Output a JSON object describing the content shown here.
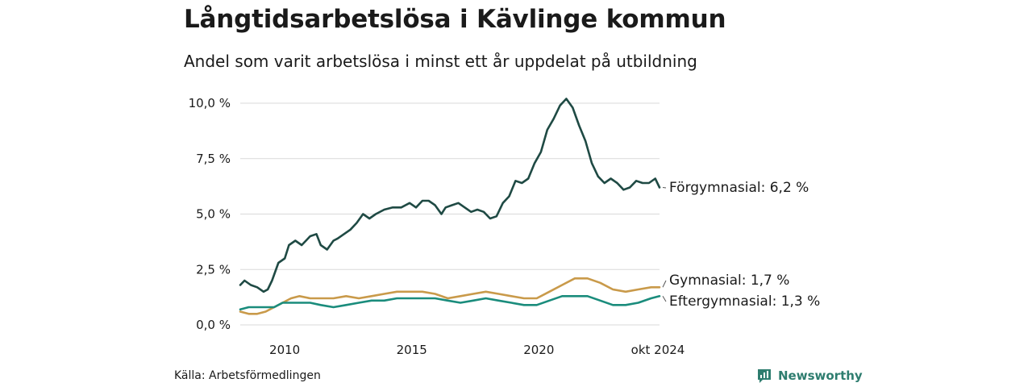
{
  "title": "Långtidsarbetslösa i Kävlinge kommun",
  "subtitle": "Andel som varit arbetslösa i minst ett år uppdelat på utbildning",
  "source": "Källa: Arbetsförmedlingen",
  "brand": "Newsworthy",
  "colors": {
    "forgymnasial": "#1f4a44",
    "gymnasial": "#c99a4a",
    "eftergymnasial": "#1a8c7c",
    "grid": "#d9d9d9",
    "brand": "#2e7d6f"
  },
  "chart_data": {
    "type": "line",
    "title": "Långtidsarbetslösa i Kävlinge kommun",
    "subtitle": "Andel som varit arbetslösa i minst ett år uppdelat på utbildning",
    "x_range": [
      "2008-04",
      "2024-10"
    ],
    "y_range": [
      0,
      10.5
    ],
    "y_ticks": [
      0,
      2.5,
      5,
      7.5,
      10
    ],
    "y_tick_labels": [
      "0,0 %",
      "2,5 %",
      "5,0 %",
      "7,5 %",
      "10,0 %"
    ],
    "x_ticks": [
      "2010-01",
      "2015-01",
      "2020-01",
      "2024-10"
    ],
    "x_tick_labels": [
      "2010",
      "2015",
      "2020",
      "okt 2024"
    ],
    "grid": "horizontal",
    "series": [
      {
        "name": "Förgymnasial",
        "end_label": "Förgymnasial: 6,2 %",
        "color": "#1f4a44",
        "points": [
          [
            "2008-04",
            1.8
          ],
          [
            "2008-06",
            2.0
          ],
          [
            "2008-09",
            1.8
          ],
          [
            "2008-12",
            1.7
          ],
          [
            "2009-03",
            1.5
          ],
          [
            "2009-05",
            1.6
          ],
          [
            "2009-07",
            2.0
          ],
          [
            "2009-10",
            2.8
          ],
          [
            "2010-01",
            3.0
          ],
          [
            "2010-03",
            3.6
          ],
          [
            "2010-06",
            3.8
          ],
          [
            "2010-09",
            3.6
          ],
          [
            "2011-01",
            4.0
          ],
          [
            "2011-04",
            4.1
          ],
          [
            "2011-06",
            3.6
          ],
          [
            "2011-09",
            3.4
          ],
          [
            "2011-12",
            3.8
          ],
          [
            "2012-02",
            3.9
          ],
          [
            "2012-05",
            4.1
          ],
          [
            "2012-08",
            4.3
          ],
          [
            "2012-11",
            4.6
          ],
          [
            "2013-02",
            5.0
          ],
          [
            "2013-05",
            4.8
          ],
          [
            "2013-08",
            5.0
          ],
          [
            "2013-12",
            5.2
          ],
          [
            "2014-04",
            5.3
          ],
          [
            "2014-08",
            5.3
          ],
          [
            "2014-12",
            5.5
          ],
          [
            "2015-03",
            5.3
          ],
          [
            "2015-06",
            5.6
          ],
          [
            "2015-09",
            5.6
          ],
          [
            "2015-12",
            5.4
          ],
          [
            "2016-03",
            5.0
          ],
          [
            "2016-05",
            5.3
          ],
          [
            "2016-08",
            5.4
          ],
          [
            "2016-11",
            5.5
          ],
          [
            "2017-02",
            5.3
          ],
          [
            "2017-05",
            5.1
          ],
          [
            "2017-08",
            5.2
          ],
          [
            "2017-11",
            5.1
          ],
          [
            "2018-02",
            4.8
          ],
          [
            "2018-05",
            4.9
          ],
          [
            "2018-08",
            5.5
          ],
          [
            "2018-11",
            5.8
          ],
          [
            "2019-02",
            6.5
          ],
          [
            "2019-05",
            6.4
          ],
          [
            "2019-08",
            6.6
          ],
          [
            "2019-11",
            7.3
          ],
          [
            "2020-02",
            7.8
          ],
          [
            "2020-05",
            8.8
          ],
          [
            "2020-08",
            9.3
          ],
          [
            "2020-11",
            9.9
          ],
          [
            "2021-02",
            10.2
          ],
          [
            "2021-05",
            9.8
          ],
          [
            "2021-08",
            9.0
          ],
          [
            "2021-11",
            8.3
          ],
          [
            "2022-02",
            7.3
          ],
          [
            "2022-05",
            6.7
          ],
          [
            "2022-08",
            6.4
          ],
          [
            "2022-11",
            6.6
          ],
          [
            "2023-02",
            6.4
          ],
          [
            "2023-05",
            6.1
          ],
          [
            "2023-08",
            6.2
          ],
          [
            "2023-11",
            6.5
          ],
          [
            "2024-02",
            6.4
          ],
          [
            "2024-05",
            6.4
          ],
          [
            "2024-08",
            6.6
          ],
          [
            "2024-10",
            6.2
          ]
        ]
      },
      {
        "name": "Gymnasial",
        "end_label": "Gymnasial: 1,7 %",
        "color": "#c99a4a",
        "points": [
          [
            "2008-04",
            0.6
          ],
          [
            "2008-08",
            0.5
          ],
          [
            "2008-12",
            0.5
          ],
          [
            "2009-04",
            0.6
          ],
          [
            "2009-08",
            0.8
          ],
          [
            "2009-12",
            1.0
          ],
          [
            "2010-04",
            1.2
          ],
          [
            "2010-08",
            1.3
          ],
          [
            "2011-01",
            1.2
          ],
          [
            "2011-06",
            1.2
          ],
          [
            "2011-12",
            1.2
          ],
          [
            "2012-06",
            1.3
          ],
          [
            "2012-12",
            1.2
          ],
          [
            "2013-06",
            1.3
          ],
          [
            "2013-12",
            1.4
          ],
          [
            "2014-06",
            1.5
          ],
          [
            "2014-12",
            1.5
          ],
          [
            "2015-06",
            1.5
          ],
          [
            "2015-12",
            1.4
          ],
          [
            "2016-06",
            1.2
          ],
          [
            "2016-12",
            1.3
          ],
          [
            "2017-06",
            1.4
          ],
          [
            "2017-12",
            1.5
          ],
          [
            "2018-06",
            1.4
          ],
          [
            "2018-12",
            1.3
          ],
          [
            "2019-06",
            1.2
          ],
          [
            "2019-12",
            1.2
          ],
          [
            "2020-06",
            1.5
          ],
          [
            "2020-12",
            1.8
          ],
          [
            "2021-06",
            2.1
          ],
          [
            "2021-12",
            2.1
          ],
          [
            "2022-06",
            1.9
          ],
          [
            "2022-12",
            1.6
          ],
          [
            "2023-06",
            1.5
          ],
          [
            "2023-12",
            1.6
          ],
          [
            "2024-06",
            1.7
          ],
          [
            "2024-10",
            1.7
          ]
        ]
      },
      {
        "name": "Eftergymnasial",
        "end_label": "Eftergymnasial: 1,3 %",
        "color": "#1a8c7c",
        "points": [
          [
            "2008-04",
            0.7
          ],
          [
            "2008-08",
            0.8
          ],
          [
            "2008-12",
            0.8
          ],
          [
            "2009-04",
            0.8
          ],
          [
            "2009-08",
            0.8
          ],
          [
            "2009-12",
            1.0
          ],
          [
            "2010-04",
            1.0
          ],
          [
            "2010-08",
            1.0
          ],
          [
            "2011-01",
            1.0
          ],
          [
            "2011-06",
            0.9
          ],
          [
            "2011-12",
            0.8
          ],
          [
            "2012-06",
            0.9
          ],
          [
            "2012-12",
            1.0
          ],
          [
            "2013-06",
            1.1
          ],
          [
            "2013-12",
            1.1
          ],
          [
            "2014-06",
            1.2
          ],
          [
            "2014-12",
            1.2
          ],
          [
            "2015-06",
            1.2
          ],
          [
            "2015-12",
            1.2
          ],
          [
            "2016-06",
            1.1
          ],
          [
            "2016-12",
            1.0
          ],
          [
            "2017-06",
            1.1
          ],
          [
            "2017-12",
            1.2
          ],
          [
            "2018-06",
            1.1
          ],
          [
            "2018-12",
            1.0
          ],
          [
            "2019-06",
            0.9
          ],
          [
            "2019-12",
            0.9
          ],
          [
            "2020-06",
            1.1
          ],
          [
            "2020-12",
            1.3
          ],
          [
            "2021-06",
            1.3
          ],
          [
            "2021-12",
            1.3
          ],
          [
            "2022-06",
            1.1
          ],
          [
            "2022-12",
            0.9
          ],
          [
            "2023-06",
            0.9
          ],
          [
            "2023-12",
            1.0
          ],
          [
            "2024-06",
            1.2
          ],
          [
            "2024-10",
            1.3
          ]
        ]
      }
    ]
  }
}
